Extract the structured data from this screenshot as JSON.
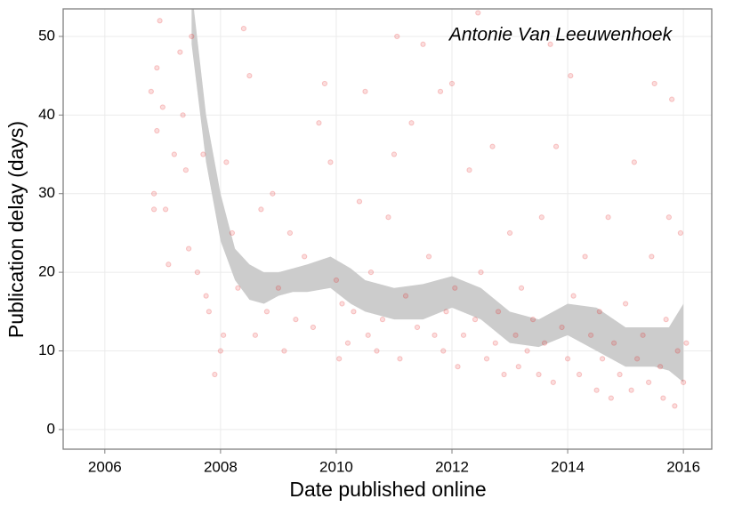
{
  "chart_data": {
    "type": "scatter",
    "annotation": "Antonie Van Leeuwenhoek",
    "x_label": "Date published online",
    "y_label": "Publication delay (days)",
    "xlim": [
      2005.28,
      2016.49
    ],
    "ylim": [
      -2.5,
      53.5
    ],
    "xticks": [
      2006,
      2008,
      2010,
      2012,
      2014,
      2016
    ],
    "yticks": [
      0,
      10,
      20,
      30,
      40,
      50
    ],
    "grid": true,
    "color": "#e41a1c",
    "point_opacity": 0.15,
    "x": [
      2006.8,
      2006.85,
      2006.9,
      2006.95,
      2006.9,
      2006.85,
      2007.0,
      2007.05,
      2007.1,
      2007.2,
      2007.3,
      2007.35,
      2007.5,
      2007.45,
      2007.4,
      2007.6,
      2007.7,
      2007.75,
      2007.8,
      2007.9,
      2008.0,
      2008.05,
      2008.1,
      2008.2,
      2008.3,
      2008.4,
      2008.5,
      2008.6,
      2008.7,
      2008.8,
      2008.9,
      2009.0,
      2009.1,
      2009.2,
      2009.3,
      2009.45,
      2009.6,
      2009.7,
      2009.8,
      2009.9,
      2010.0,
      2010.05,
      2010.1,
      2010.2,
      2010.3,
      2010.4,
      2010.5,
      2010.55,
      2010.6,
      2010.7,
      2010.8,
      2010.9,
      2011.0,
      2011.05,
      2011.1,
      2011.2,
      2011.3,
      2011.4,
      2011.5,
      2011.6,
      2011.7,
      2011.8,
      2011.85,
      2011.9,
      2012.0,
      2012.05,
      2012.1,
      2012.2,
      2012.3,
      2012.4,
      2012.45,
      2012.5,
      2012.6,
      2012.7,
      2012.75,
      2012.8,
      2012.9,
      2013.0,
      2013.1,
      2013.15,
      2013.2,
      2013.3,
      2013.4,
      2013.5,
      2013.55,
      2013.6,
      2013.7,
      2013.75,
      2013.8,
      2013.9,
      2014.0,
      2014.05,
      2014.1,
      2014.2,
      2014.3,
      2014.4,
      2014.5,
      2014.55,
      2014.6,
      2014.7,
      2014.75,
      2014.8,
      2014.9,
      2015.0,
      2015.1,
      2015.15,
      2015.2,
      2015.3,
      2015.4,
      2015.45,
      2015.5,
      2015.6,
      2015.65,
      2015.7,
      2015.75,
      2015.8,
      2015.85,
      2015.9,
      2015.95,
      2016.0,
      2016.05
    ],
    "y": [
      43,
      30,
      46,
      52,
      38,
      28,
      41,
      28,
      21,
      35,
      48,
      40,
      50,
      23,
      33,
      20,
      35,
      17,
      15,
      7,
      10,
      12,
      34,
      25,
      18,
      51,
      45,
      12,
      28,
      15,
      30,
      18,
      10,
      25,
      14,
      22,
      13,
      39,
      44,
      34,
      19,
      9,
      16,
      11,
      15,
      29,
      43,
      12,
      20,
      10,
      14,
      27,
      35,
      50,
      9,
      17,
      39,
      13,
      49,
      22,
      12,
      43,
      10,
      15,
      44,
      18,
      8,
      12,
      33,
      14,
      53,
      20,
      9,
      36,
      11,
      15,
      7,
      25,
      12,
      8,
      18,
      10,
      14,
      7,
      27,
      11,
      49,
      6,
      36,
      13,
      9,
      45,
      17,
      7,
      22,
      12,
      5,
      15,
      9,
      27,
      4,
      11,
      7,
      16,
      5,
      34,
      9,
      12,
      6,
      22,
      44,
      8,
      4,
      14,
      27,
      42,
      3,
      10,
      25,
      6,
      11
    ],
    "smooth": {
      "x": [
        2007.5,
        2007.75,
        2008.0,
        2008.25,
        2008.5,
        2008.75,
        2009.0,
        2009.25,
        2009.5,
        2009.9,
        2010.25,
        2010.5,
        2011.0,
        2011.5,
        2012.0,
        2012.5,
        2013.0,
        2013.5,
        2014.0,
        2014.5,
        2015.0,
        2015.5,
        2015.75,
        2016.0
      ],
      "lower": [
        49,
        34,
        24,
        19,
        16.5,
        16,
        17,
        17.5,
        17.5,
        18,
        16,
        15,
        14,
        14,
        15.5,
        14,
        11,
        10.5,
        12,
        10,
        8,
        8,
        7.5,
        6
      ],
      "upper": [
        56,
        40,
        30,
        23,
        21,
        20,
        20,
        20.5,
        21,
        22,
        20.5,
        19,
        18,
        18.5,
        19.5,
        18,
        15,
        14,
        16,
        15.5,
        13,
        13,
        13,
        16
      ],
      "color": "#cccccc"
    }
  }
}
